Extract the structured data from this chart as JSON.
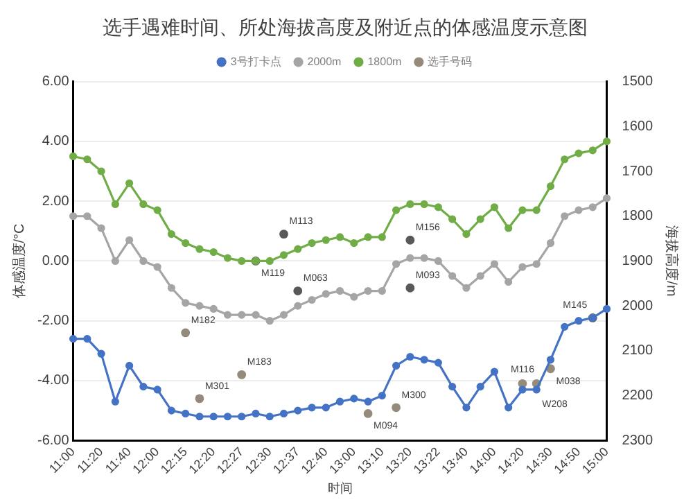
{
  "chart_data": {
    "type": "line",
    "title": "选手遇难时间、所处海拔高度及附近点的体感温度示意图",
    "xlabel": "时间",
    "ylabel": "体感温度/°C",
    "y2label": "海拔高度/m",
    "categories": [
      "11:00",
      null,
      "11:20",
      null,
      "11:40",
      null,
      "12:00",
      null,
      "12:15",
      null,
      "12:20",
      null,
      "12:27",
      null,
      "12:30",
      null,
      "12:37",
      null,
      "12:40",
      null,
      "13:00",
      null,
      "13:10",
      null,
      "13:20",
      null,
      "13:22",
      null,
      "13:40",
      null,
      "14:00",
      null,
      "14:20",
      null,
      "14:30",
      null,
      "14:50",
      null,
      "15:00"
    ],
    "series": [
      {
        "name": "3号打卡点",
        "type": "line",
        "color": "#4472c4",
        "values": [
          -2.6,
          -2.6,
          -3.1,
          -4.7,
          -3.5,
          -4.2,
          -4.3,
          -5.0,
          -5.1,
          -5.2,
          -5.2,
          -5.2,
          -5.2,
          -5.1,
          -5.2,
          -5.1,
          -5.0,
          -4.9,
          -4.9,
          -4.7,
          -4.6,
          -4.7,
          -4.5,
          -3.5,
          -3.2,
          -3.3,
          -3.4,
          -4.2,
          -4.9,
          -4.2,
          -3.7,
          -4.9,
          -4.3,
          -4.3,
          -3.3,
          -2.2,
          -2.0,
          -1.9,
          -1.6
        ]
      },
      {
        "name": "2000m",
        "type": "line",
        "color": "#a5a5a5",
        "values": [
          1.5,
          1.5,
          1.1,
          0.0,
          0.7,
          0.0,
          -0.2,
          -0.9,
          -1.4,
          -1.5,
          -1.6,
          -1.8,
          -1.8,
          -1.8,
          -2.0,
          -1.8,
          -1.5,
          -1.3,
          -1.1,
          -1.0,
          -1.2,
          -1.0,
          -1.0,
          -0.1,
          0.1,
          0.1,
          0.0,
          -0.5,
          -0.9,
          -0.5,
          -0.1,
          -0.7,
          -0.2,
          -0.1,
          0.6,
          1.5,
          1.7,
          1.8,
          2.1
        ]
      },
      {
        "name": "1800m",
        "type": "line",
        "color": "#70ad47",
        "values": [
          3.5,
          3.4,
          3.0,
          1.9,
          2.6,
          1.9,
          1.7,
          0.9,
          0.6,
          0.4,
          0.3,
          0.1,
          0.0,
          0.0,
          0.0,
          0.2,
          0.4,
          0.6,
          0.7,
          0.8,
          0.6,
          0.8,
          0.8,
          1.7,
          1.9,
          1.9,
          1.8,
          1.4,
          0.9,
          1.4,
          1.8,
          1.1,
          1.7,
          1.7,
          2.5,
          3.4,
          3.6,
          3.7,
          4.0
        ]
      },
      {
        "name": "选手号码",
        "type": "scatter",
        "color": "#968b7b",
        "values": [
          null,
          null,
          null,
          null,
          null,
          null,
          null,
          null,
          -2.4,
          -4.6,
          null,
          null,
          -3.8,
          0.0,
          null,
          0.9,
          -1.0,
          null,
          null,
          null,
          null,
          -5.1,
          null,
          -4.9,
          0.7,
          null,
          null,
          null,
          null,
          null,
          null,
          null,
          -4.1,
          -4.1,
          -3.6,
          null,
          null,
          -1.9,
          null
        ],
        "colors": [
          null,
          null,
          null,
          null,
          null,
          null,
          null,
          null,
          "#968b7b",
          "#968b7b",
          null,
          null,
          "#968b7b",
          "#595959",
          null,
          "#595959",
          "#595959",
          null,
          null,
          null,
          null,
          "#968b7b",
          null,
          "#968b7b",
          "#595959",
          null,
          null,
          null,
          null,
          null,
          null,
          null,
          "#968b7b",
          "#968b7b",
          "#968b7b",
          null,
          null,
          "#595959",
          null
        ],
        "value_labels": [
          null,
          null,
          null,
          null,
          null,
          null,
          null,
          null,
          "M182",
          "M301",
          null,
          null,
          "M183",
          "M119",
          null,
          "M113",
          "M063",
          null,
          null,
          null,
          null,
          "M094",
          null,
          "M300",
          "M156",
          null,
          null,
          null,
          null,
          null,
          null,
          null,
          "M116",
          "W208",
          "M038",
          null,
          null,
          "M145",
          null
        ]
      },
      {
        "type": "scatter",
        "color": "#595959",
        "values": [
          null,
          null,
          null,
          null,
          null,
          null,
          null,
          null,
          null,
          null,
          null,
          null,
          null,
          null,
          null,
          null,
          null,
          null,
          null,
          null,
          null,
          null,
          null,
          null,
          -0.9,
          null,
          null,
          null,
          null,
          null,
          null,
          null,
          null,
          null,
          null,
          null,
          null,
          null,
          null
        ],
        "value_labels": [
          null,
          null,
          null,
          null,
          null,
          null,
          null,
          null,
          null,
          null,
          null,
          null,
          null,
          null,
          null,
          null,
          null,
          null,
          null,
          null,
          null,
          null,
          null,
          null,
          "M093",
          null,
          null,
          null,
          null,
          null,
          null,
          null,
          null,
          null,
          null,
          null,
          null,
          null,
          null
        ]
      }
    ],
    "ylim": [
      -6,
      6
    ],
    "yticks": [
      {
        "value": -6,
        "label": "-6.00"
      },
      {
        "value": -4,
        "label": "-4.00"
      },
      {
        "value": -2,
        "label": "-2.00"
      },
      {
        "value": 0,
        "label": "0.00"
      },
      {
        "value": 2,
        "label": "2.00"
      },
      {
        "value": 4,
        "label": "4.00"
      },
      {
        "value": 6,
        "label": "6.00"
      }
    ],
    "y2lim": [
      2300,
      1500
    ],
    "y2ticks": [
      1500,
      1600,
      1700,
      1800,
      1900,
      2000,
      2100,
      2200,
      2300
    ],
    "grid": "y",
    "legend": "top",
    "marker": "circle",
    "line_style": "solid"
  }
}
